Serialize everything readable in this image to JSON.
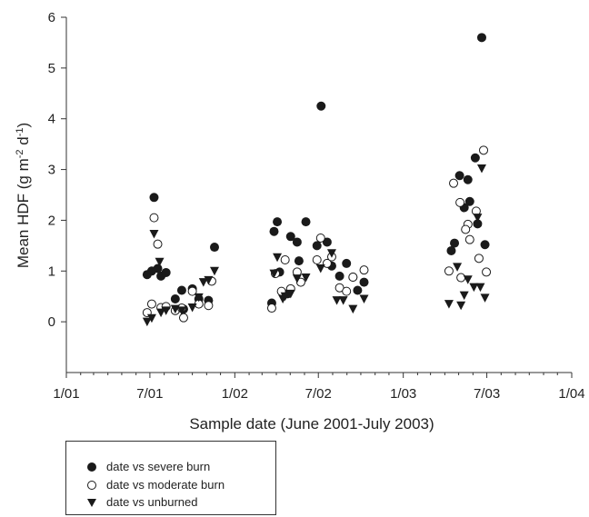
{
  "chart_data": {
    "type": "scatter",
    "title": "",
    "xlabel": "Sample date (June 2001-July 2003)",
    "ylabel": "Mean HDF (g m-2 d-1)",
    "ylabel_parts": {
      "main": "Mean HDF (g m",
      "exp1": "-2",
      "mid": " d",
      "exp2": "-1",
      "end": ")"
    },
    "xlim": [
      "2001-01-01",
      "2004-01-01"
    ],
    "ylim": [
      -1,
      6
    ],
    "x_ticks": [
      {
        "date": "2001-01-01",
        "label": "1/01"
      },
      {
        "date": "2001-07-01",
        "label": "7/01"
      },
      {
        "date": "2002-01-01",
        "label": "1/02"
      },
      {
        "date": "2002-07-01",
        "label": "7/02"
      },
      {
        "date": "2003-01-01",
        "label": "1/03"
      },
      {
        "date": "2003-07-01",
        "label": "7/03"
      },
      {
        "date": "2004-01-01",
        "label": "1/04"
      }
    ],
    "y_ticks": [
      0,
      1,
      2,
      3,
      4,
      5,
      6
    ],
    "grid": false,
    "legend_position": "below-left",
    "series": [
      {
        "name": "date vs severe burn",
        "marker": "filled-circle",
        "points": [
          [
            "2001-06-25",
            0.93
          ],
          [
            "2001-07-05",
            1.0
          ],
          [
            "2001-07-10",
            2.45
          ],
          [
            "2001-07-18",
            1.05
          ],
          [
            "2001-07-25",
            0.9
          ],
          [
            "2001-08-05",
            0.97
          ],
          [
            "2001-08-25",
            0.45
          ],
          [
            "2001-09-08",
            0.62
          ],
          [
            "2001-09-12",
            0.25
          ],
          [
            "2001-10-01",
            0.65
          ],
          [
            "2001-10-15",
            0.45
          ],
          [
            "2001-11-05",
            0.42
          ],
          [
            "2001-11-18",
            1.47
          ],
          [
            "2002-03-22",
            0.37
          ],
          [
            "2002-03-27",
            1.78
          ],
          [
            "2002-04-03",
            1.97
          ],
          [
            "2002-04-08",
            0.98
          ],
          [
            "2002-04-25",
            0.55
          ],
          [
            "2002-05-02",
            1.68
          ],
          [
            "2002-05-16",
            1.57
          ],
          [
            "2002-05-20",
            1.2
          ],
          [
            "2002-06-04",
            1.97
          ],
          [
            "2002-06-28",
            1.5
          ],
          [
            "2002-07-07",
            4.25
          ],
          [
            "2002-07-20",
            1.57
          ],
          [
            "2002-07-30",
            1.1
          ],
          [
            "2002-08-16",
            0.9
          ],
          [
            "2002-08-31",
            1.15
          ],
          [
            "2002-09-14",
            0.88
          ],
          [
            "2002-09-24",
            0.62
          ],
          [
            "2002-10-08",
            0.78
          ],
          [
            "2003-04-15",
            1.4
          ],
          [
            "2003-04-22",
            1.55
          ],
          [
            "2003-05-03",
            2.88
          ],
          [
            "2003-05-13",
            2.25
          ],
          [
            "2003-05-21",
            2.8
          ],
          [
            "2003-05-25",
            2.37
          ],
          [
            "2003-06-06",
            3.23
          ],
          [
            "2003-06-11",
            1.93
          ],
          [
            "2003-06-20",
            5.6
          ],
          [
            "2003-06-27",
            1.52
          ]
        ]
      },
      {
        "name": "date vs moderate burn",
        "marker": "open-circle",
        "points": [
          [
            "2001-06-25",
            0.18
          ],
          [
            "2001-07-05",
            0.35
          ],
          [
            "2001-07-10",
            2.05
          ],
          [
            "2001-07-18",
            1.53
          ],
          [
            "2001-07-25",
            0.28
          ],
          [
            "2001-08-05",
            0.3
          ],
          [
            "2001-08-25",
            0.22
          ],
          [
            "2001-09-08",
            0.27
          ],
          [
            "2001-09-12",
            0.08
          ],
          [
            "2001-10-01",
            0.6
          ],
          [
            "2001-10-15",
            0.35
          ],
          [
            "2001-11-05",
            0.32
          ],
          [
            "2001-11-12",
            0.8
          ],
          [
            "2002-03-22",
            0.27
          ],
          [
            "2002-03-30",
            0.95
          ],
          [
            "2002-04-12",
            0.6
          ],
          [
            "2002-04-20",
            1.22
          ],
          [
            "2002-05-02",
            0.65
          ],
          [
            "2002-05-16",
            0.98
          ],
          [
            "2002-05-24",
            0.78
          ],
          [
            "2002-06-28",
            1.22
          ],
          [
            "2002-07-06",
            1.65
          ],
          [
            "2002-07-20",
            1.15
          ],
          [
            "2002-07-30",
            1.28
          ],
          [
            "2002-08-16",
            0.67
          ],
          [
            "2002-08-31",
            0.6
          ],
          [
            "2002-09-14",
            0.88
          ],
          [
            "2002-10-08",
            1.02
          ],
          [
            "2003-04-10",
            1.0
          ],
          [
            "2003-04-20",
            2.73
          ],
          [
            "2003-05-04",
            2.35
          ],
          [
            "2003-05-06",
            0.87
          ],
          [
            "2003-05-21",
            1.92
          ],
          [
            "2003-05-16",
            1.82
          ],
          [
            "2003-05-25",
            1.62
          ],
          [
            "2003-06-08",
            2.18
          ],
          [
            "2003-06-14",
            1.25
          ],
          [
            "2003-06-24",
            3.38
          ],
          [
            "2003-06-30",
            0.98
          ]
        ]
      },
      {
        "name": "date vs unburned",
        "marker": "filled-triangle-down",
        "points": [
          [
            "2001-06-25",
            0.0
          ],
          [
            "2001-07-05",
            0.07
          ],
          [
            "2001-07-10",
            1.73
          ],
          [
            "2001-07-22",
            1.18
          ],
          [
            "2001-07-25",
            0.18
          ],
          [
            "2001-08-05",
            0.22
          ],
          [
            "2001-08-25",
            0.25
          ],
          [
            "2001-09-08",
            0.22
          ],
          [
            "2001-10-01",
            0.28
          ],
          [
            "2001-10-15",
            0.48
          ],
          [
            "2001-10-25",
            0.78
          ],
          [
            "2001-11-05",
            0.82
          ],
          [
            "2001-11-18",
            1.0
          ],
          [
            "2002-03-27",
            0.95
          ],
          [
            "2002-04-03",
            1.27
          ],
          [
            "2002-04-15",
            0.45
          ],
          [
            "2002-04-20",
            0.5
          ],
          [
            "2002-05-02",
            0.55
          ],
          [
            "2002-05-16",
            0.85
          ],
          [
            "2002-06-04",
            0.87
          ],
          [
            "2002-07-06",
            1.05
          ],
          [
            "2002-07-30",
            1.35
          ],
          [
            "2002-08-10",
            0.42
          ],
          [
            "2002-08-24",
            0.42
          ],
          [
            "2002-09-14",
            0.25
          ],
          [
            "2002-10-08",
            0.45
          ],
          [
            "2003-04-10",
            0.35
          ],
          [
            "2003-04-28",
            1.08
          ],
          [
            "2003-05-06",
            0.32
          ],
          [
            "2003-05-13",
            0.52
          ],
          [
            "2003-05-21",
            0.83
          ],
          [
            "2003-06-03",
            0.68
          ],
          [
            "2003-06-11",
            2.05
          ],
          [
            "2003-06-17",
            0.68
          ],
          [
            "2003-06-20",
            3.02
          ],
          [
            "2003-06-27",
            0.47
          ]
        ]
      }
    ]
  }
}
